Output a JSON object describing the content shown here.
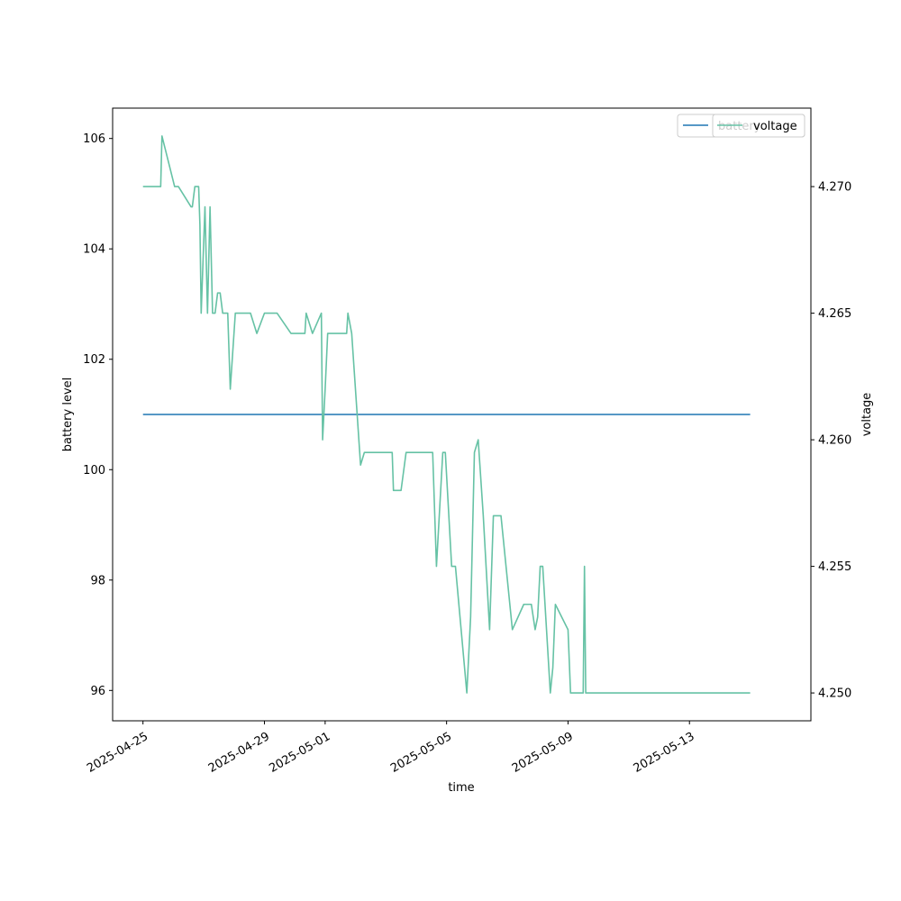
{
  "chart_data": {
    "type": "line",
    "xlabel": "time",
    "ylabel_left": "battery level",
    "ylabel_right": "voltage",
    "xlim": [
      "2025-04-24",
      "2025-05-17"
    ],
    "ylim_left": [
      95.45,
      106.55
    ],
    "ylim_right": [
      4.2489,
      4.2731
    ],
    "x_ticks": [
      "2025-04-25",
      "2025-04-29",
      "2025-05-01",
      "2025-05-05",
      "2025-05-09",
      "2025-05-13"
    ],
    "y_ticks_left": [
      96,
      98,
      100,
      102,
      104,
      106
    ],
    "y_ticks_right": [
      4.25,
      4.255,
      4.26,
      4.265,
      4.27
    ],
    "legend_position": "top-right",
    "grid": false,
    "series": [
      {
        "name": "battery",
        "axis": "left",
        "color": "#1f77b4",
        "x": [
          "2025-04-25 00:00",
          "2025-05-15 00:00"
        ],
        "y": [
          101,
          101
        ]
      },
      {
        "name": "voltage",
        "axis": "right",
        "color": "#66c2a5",
        "x": [
          "2025-04-25 00:00",
          "2025-04-25 14:00",
          "2025-04-25 15:00",
          "2025-04-26 01:00",
          "2025-04-26 04:00",
          "2025-04-26 14:00",
          "2025-04-26 15:00",
          "2025-04-26 17:00",
          "2025-04-26 20:00",
          "2025-04-26 21:00",
          "2025-04-26 22:00",
          "2025-04-27 01:00",
          "2025-04-27 03:00",
          "2025-04-27 05:00",
          "2025-04-27 07:00",
          "2025-04-27 09:00",
          "2025-04-27 11:00",
          "2025-04-27 13:00",
          "2025-04-27 15:00",
          "2025-04-27 19:00",
          "2025-04-27 21:00",
          "2025-04-28 01:00",
          "2025-04-28 04:00",
          "2025-04-28 13:00",
          "2025-04-28 18:00",
          "2025-04-29 00:00",
          "2025-04-29 08:00",
          "2025-04-29 10:00",
          "2025-04-29 21:00",
          "2025-04-30 00:00",
          "2025-04-30 08:00",
          "2025-04-30 09:00",
          "2025-04-30 14:00",
          "2025-04-30 21:00",
          "2025-04-30 22:00",
          "2025-05-01 00:00",
          "2025-05-01 02:00",
          "2025-05-01 17:00",
          "2025-05-01 18:00",
          "2025-05-01 21:00",
          "2025-05-02 04:00",
          "2025-05-02 07:00",
          "2025-05-02 12:00",
          "2025-05-02 19:00",
          "2025-05-02 22:00",
          "2025-05-03 01:00",
          "2025-05-03 05:00",
          "2025-05-03 06:00",
          "2025-05-03 12:00",
          "2025-05-03 16:00",
          "2025-05-03 17:00",
          "2025-05-03 19:00",
          "2025-05-03 21:00",
          "2025-05-04 00:00",
          "2025-05-04 09:00",
          "2025-05-04 13:00",
          "2025-05-04 16:00",
          "2025-05-04 21:00",
          "2025-05-04 23:00",
          "2025-05-05 04:00",
          "2025-05-05 07:00",
          "2025-05-05 16:00",
          "2025-05-05 19:00",
          "2025-05-05 22:00",
          "2025-05-06 01:00",
          "2025-05-06 05:00",
          "2025-05-06 10:00",
          "2025-05-06 13:00",
          "2025-05-06 16:00",
          "2025-05-06 19:00",
          "2025-05-07 04:00",
          "2025-05-07 13:00",
          "2025-05-07 19:00",
          "2025-05-07 22:00",
          "2025-05-08 00:00",
          "2025-05-08 02:00",
          "2025-05-08 04:00",
          "2025-05-08 07:00",
          "2025-05-08 10:00",
          "2025-05-08 12:00",
          "2025-05-08 14:00",
          "2025-05-09 00:00",
          "2025-05-09 02:00",
          "2025-05-09 04:00",
          "2025-05-09 12:00",
          "2025-05-09 13:00",
          "2025-05-09 14:00",
          "2025-05-15 00:00"
        ],
        "y": [
          4.27,
          4.27,
          4.272,
          4.27,
          4.27,
          4.2692,
          4.2692,
          4.27,
          4.27,
          4.2685,
          4.265,
          4.2692,
          4.265,
          4.2692,
          4.265,
          4.265,
          4.2658,
          4.2658,
          4.265,
          4.265,
          4.262,
          4.265,
          4.265,
          4.265,
          4.2642,
          4.265,
          4.265,
          4.265,
          4.2642,
          4.2642,
          4.2642,
          4.265,
          4.2642,
          4.265,
          4.26,
          4.262,
          4.2642,
          4.2642,
          4.265,
          4.2642,
          4.259,
          4.2595,
          4.2595,
          4.2595,
          4.2595,
          4.2595,
          4.2595,
          4.258,
          4.258,
          4.2595,
          4.2595,
          4.2595,
          4.2595,
          4.2595,
          4.2595,
          4.2595,
          4.255,
          4.2595,
          4.2595,
          4.255,
          4.255,
          4.25,
          4.253,
          4.2595,
          4.26,
          4.257,
          4.2525,
          4.257,
          4.257,
          4.257,
          4.2525,
          4.2535,
          4.2535,
          4.2525,
          4.253,
          4.255,
          4.255,
          4.2525,
          4.25,
          4.251,
          4.2535,
          4.2525,
          4.25,
          4.25,
          4.25,
          4.255,
          4.25,
          4.25
        ]
      }
    ]
  }
}
